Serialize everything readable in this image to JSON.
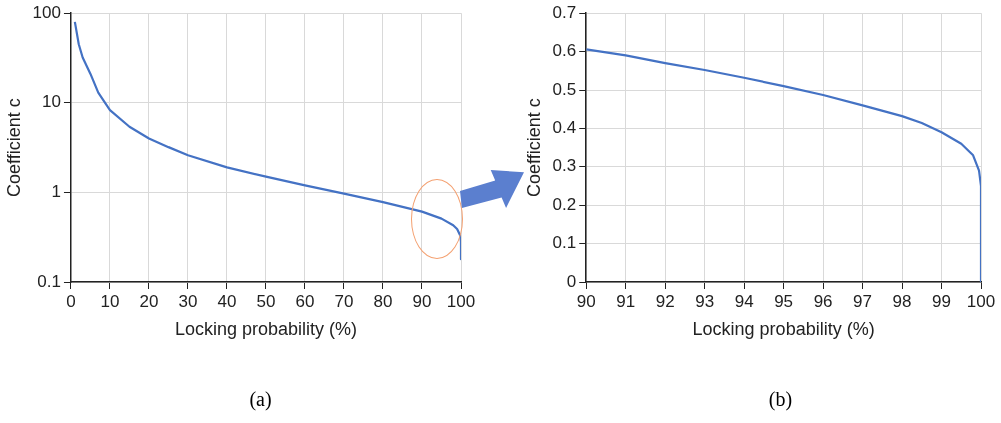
{
  "chart_data": [
    {
      "type": "line",
      "xlabel": "Locking probability (%)",
      "ylabel": "Coefficient c",
      "log": "y",
      "grid": true,
      "line_style": "solid",
      "marker": "none",
      "annotations": [
        "(a)"
      ],
      "xlim": [
        0,
        100
      ],
      "xticks": [
        0,
        10,
        20,
        30,
        40,
        50,
        60,
        70,
        80,
        90,
        100
      ],
      "ylim": [
        0.1,
        100
      ],
      "yticks": [
        0.1,
        1,
        10,
        100
      ],
      "series": [
        {
          "color": "#4472c4",
          "x": [
            1,
            2,
            3,
            5,
            7,
            10,
            15,
            20,
            25,
            30,
            40,
            50,
            60,
            70,
            80,
            90,
            95,
            98,
            99,
            99.8,
            100,
            100
          ],
          "values": [
            80,
            45,
            32,
            21,
            13,
            8.3,
            5.4,
            4.0,
            3.2,
            2.6,
            1.9,
            1.5,
            1.2,
            0.97,
            0.78,
            0.61,
            0.51,
            0.43,
            0.39,
            0.33,
            0.28,
            0.18
          ]
        }
      ]
    },
    {
      "type": "line",
      "xlabel": "Locking probability (%)",
      "ylabel": "Coefficient c",
      "grid": true,
      "line_style": "solid",
      "marker": "none",
      "annotations": [
        "(b)"
      ],
      "xlim": [
        90,
        100
      ],
      "xticks": [
        90,
        91,
        92,
        93,
        94,
        95,
        96,
        97,
        98,
        99,
        100
      ],
      "ylim": [
        0,
        0.7
      ],
      "yticks": [
        0,
        0.1,
        0.2,
        0.3,
        0.4,
        0.5,
        0.6,
        0.7
      ],
      "series": [
        {
          "color": "#4472c4",
          "x": [
            90,
            91,
            92,
            93,
            94,
            95,
            96,
            97,
            98,
            98.5,
            99,
            99.5,
            99.8,
            99.95,
            100,
            100
          ],
          "values": [
            0.606,
            0.59,
            0.57,
            0.552,
            0.532,
            0.51,
            0.487,
            0.46,
            0.432,
            0.414,
            0.39,
            0.36,
            0.33,
            0.29,
            0.25,
            0
          ]
        }
      ]
    }
  ]
}
